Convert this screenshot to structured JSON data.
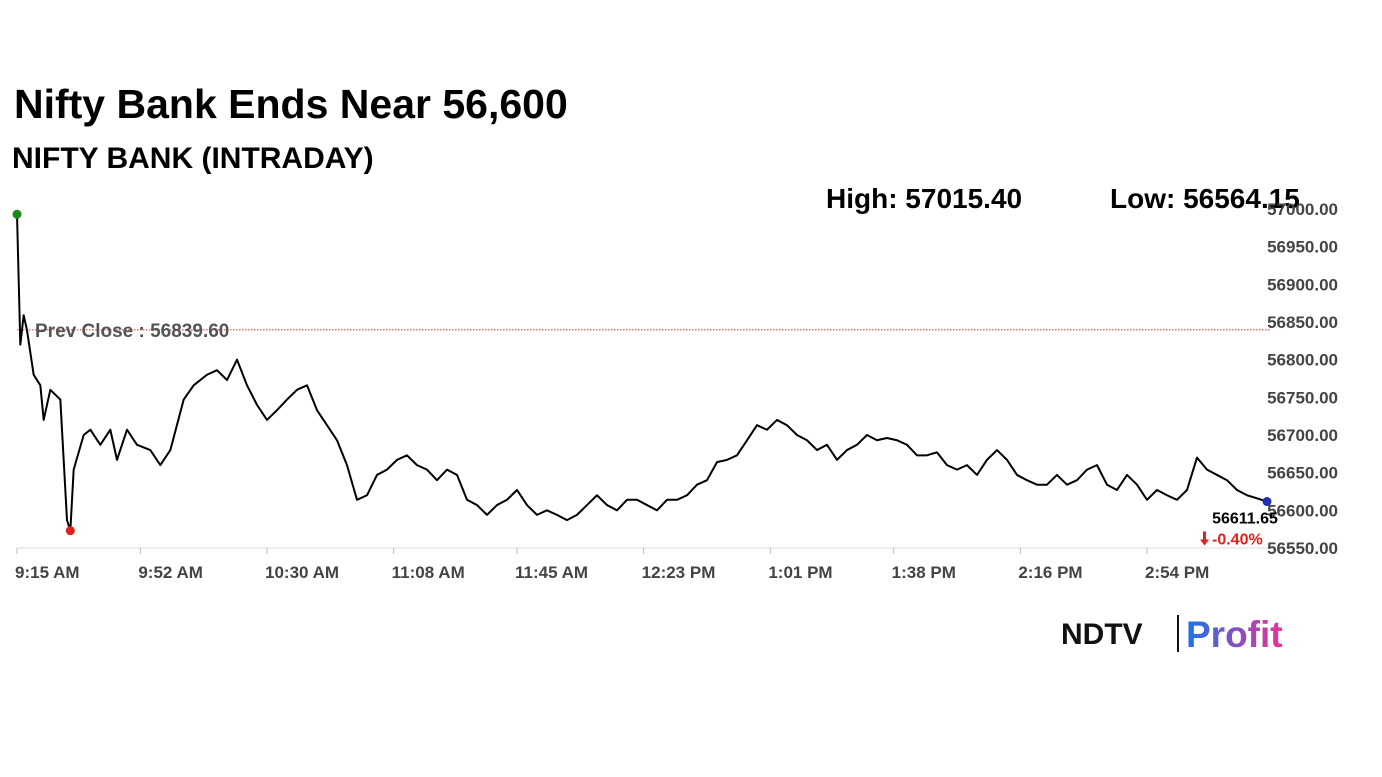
{
  "chart_data": {
    "type": "line",
    "title": "Nifty Bank Ends Near 56,600",
    "subtitle": "NIFTY BANK (INTRADAY)",
    "high_label": "High: 57015.40",
    "low_label": "Low: 56564.15",
    "prev_close": {
      "value": 56839.6,
      "label": "Prev Close : 56839.60"
    },
    "change": {
      "value": -0.4,
      "label": "-0.40%"
    },
    "color": "#000000",
    "high_marker_color": "#1a8a1a",
    "low_marker_color": "#e0201c",
    "last_marker_color": "#1f2fb0",
    "change_color": "#e0201c",
    "prev_close_color": "#c0392b",
    "xlim": [
      "9:15 AM",
      "3:30 PM"
    ],
    "xticks": [
      "9:15 AM",
      "9:52 AM",
      "10:30 AM",
      "11:08 AM",
      "11:45 AM",
      "12:23 PM",
      "1:01 PM",
      "1:38 PM",
      "2:16 PM",
      "2:54 PM"
    ],
    "ylim": [
      56550,
      57000
    ],
    "yticks": [
      {
        "value": 56550,
        "label": "56550.00"
      },
      {
        "value": 56600,
        "label": "56600.00"
      },
      {
        "value": 56650,
        "label": "56650.00"
      },
      {
        "value": 56700,
        "label": "56700.00"
      },
      {
        "value": 56750,
        "label": "56750.00"
      },
      {
        "value": 56800,
        "label": "56800.00"
      },
      {
        "value": 56850,
        "label": "56850.00"
      },
      {
        "value": 56900,
        "label": "56900.00"
      },
      {
        "value": 56950,
        "label": "56950.00"
      },
      {
        "value": 57000,
        "label": "57000.00"
      }
    ],
    "x": [
      "9:15 AM",
      "9:16 AM",
      "9:17 AM",
      "9:18 AM",
      "9:20 AM",
      "9:22 AM",
      "9:23 AM",
      "9:25 AM",
      "9:28 AM",
      "9:30 AM",
      "9:31 AM",
      "9:32 AM",
      "9:35 AM",
      "9:37 AM",
      "9:40 AM",
      "9:43 AM",
      "9:45 AM",
      "9:48 AM",
      "9:51 AM",
      "9:55 AM",
      "9:58 AM",
      "10:01 AM",
      "10:05 AM",
      "10:08 AM",
      "10:12 AM",
      "10:15 AM",
      "10:18 AM",
      "10:21 AM",
      "10:24 AM",
      "10:27 AM",
      "10:30 AM",
      "10:33 AM",
      "10:36 AM",
      "10:39 AM",
      "10:42 AM",
      "10:45 AM",
      "10:48 AM",
      "10:51 AM",
      "10:54 AM",
      "10:57 AM",
      "11:00 AM",
      "11:03 AM",
      "11:06 AM",
      "11:09 AM",
      "11:12 AM",
      "11:15 AM",
      "11:18 AM",
      "11:21 AM",
      "11:24 AM",
      "11:27 AM",
      "11:30 AM",
      "11:33 AM",
      "11:36 AM",
      "11:39 AM",
      "11:42 AM",
      "11:45 AM",
      "11:48 AM",
      "11:51 AM",
      "11:54 AM",
      "11:57 AM",
      "12:00 PM",
      "12:03 PM",
      "12:06 PM",
      "12:09 PM",
      "12:12 PM",
      "12:15 PM",
      "12:18 PM",
      "12:21 PM",
      "12:24 PM",
      "12:27 PM",
      "12:30 PM",
      "12:33 PM",
      "12:36 PM",
      "12:39 PM",
      "12:42 PM",
      "12:45 PM",
      "12:48 PM",
      "12:51 PM",
      "12:54 PM",
      "12:57 PM",
      "1:00 PM",
      "1:03 PM",
      "1:06 PM",
      "1:09 PM",
      "1:12 PM",
      "1:15 PM",
      "1:18 PM",
      "1:21 PM",
      "1:24 PM",
      "1:27 PM",
      "1:30 PM",
      "1:33 PM",
      "1:36 PM",
      "1:39 PM",
      "1:42 PM",
      "1:45 PM",
      "1:48 PM",
      "1:51 PM",
      "1:54 PM",
      "1:57 PM",
      "2:00 PM",
      "2:03 PM",
      "2:06 PM",
      "2:09 PM",
      "2:12 PM",
      "2:15 PM",
      "2:18 PM",
      "2:21 PM",
      "2:24 PM",
      "2:27 PM",
      "2:30 PM",
      "2:33 PM",
      "2:36 PM",
      "2:39 PM",
      "2:42 PM",
      "2:45 PM",
      "2:48 PM",
      "2:51 PM",
      "2:54 PM",
      "2:57 PM",
      "3:00 PM",
      "3:03 PM",
      "3:06 PM",
      "3:09 PM",
      "3:12 PM",
      "3:15 PM",
      "3:18 PM",
      "3:21 PM",
      "3:24 PM",
      "3:27 PM",
      "3:30 PM"
    ],
    "values": [
      56993,
      56820,
      56859,
      56839,
      56780,
      56766,
      56720,
      56760,
      56747,
      56587,
      56573,
      56654,
      56700,
      56707,
      56687,
      56707,
      56667,
      56707,
      56687,
      56680,
      56660,
      56680,
      56747,
      56766,
      56780,
      56786,
      56773,
      56800,
      56766,
      56740,
      56720,
      56733,
      56747,
      56760,
      56766,
      56733,
      56713,
      56693,
      56660,
      56614,
      56620,
      56647,
      56654,
      56667,
      56673,
      56660,
      56654,
      56640,
      56654,
      56647,
      56614,
      56607,
      56594,
      56607,
      56614,
      56627,
      56607,
      56594,
      56600,
      56594,
      56587,
      56594,
      56607,
      56620,
      56607,
      56600,
      56614,
      56614,
      56607,
      56600,
      56614,
      56614,
      56620,
      56634,
      56640,
      56664,
      56667,
      56673,
      56693,
      56713,
      56707,
      56720,
      56713,
      56700,
      56693,
      56680,
      56687,
      56667,
      56680,
      56687,
      56700,
      56693,
      56696,
      56693,
      56687,
      56673,
      56673,
      56677,
      56660,
      56654,
      56660,
      56647,
      56667,
      56680,
      56667,
      56647,
      56640,
      56634,
      56634,
      56647,
      56634,
      56640,
      56654,
      56660,
      56634,
      56627,
      56647,
      56634,
      56614,
      56627,
      56620,
      56614,
      56627,
      56670,
      56654,
      56647,
      56640,
      56627,
      56620,
      56616,
      56611.65
    ]
  },
  "logo": {
    "brand": "NDTV",
    "product": "Profit"
  }
}
